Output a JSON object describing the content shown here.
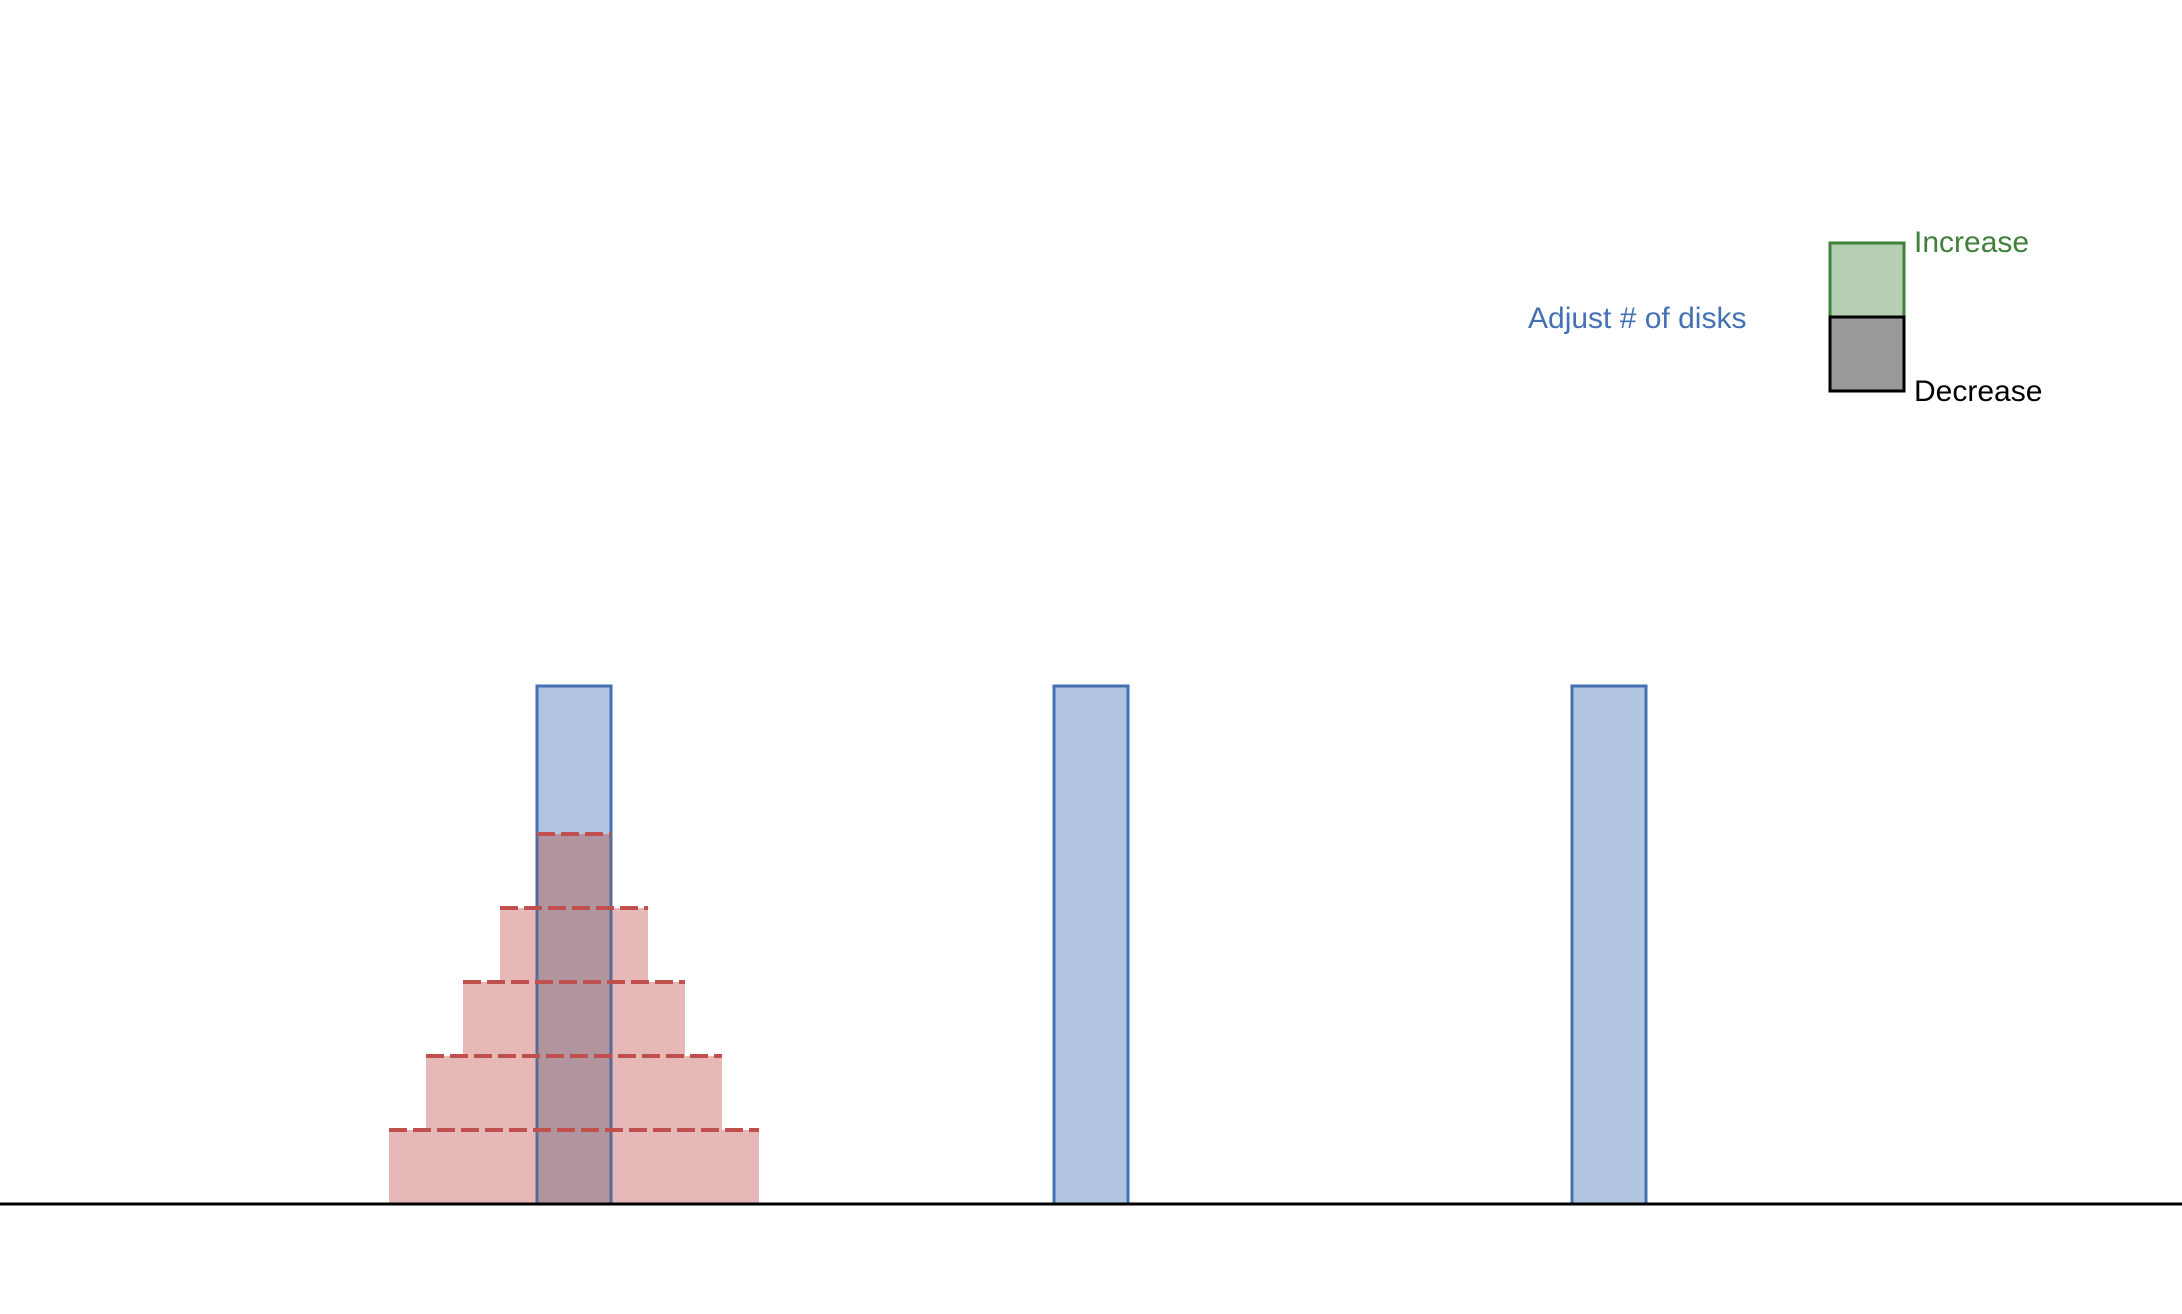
{
  "controls": {
    "adjust_label": "Adjust # of disks",
    "increase_label": "Increase",
    "decrease_label": "Decrease"
  },
  "game": {
    "peg_count": 3,
    "disk_count": 5,
    "disks_on_peg": [
      5,
      0,
      0
    ]
  },
  "colors": {
    "peg_fill": "#b2c5e0",
    "peg_stroke": "#4471b4",
    "disk_fill": "#e6b8b7",
    "disk_stroke": "#c0504d",
    "overlap_fill": "#b0949e",
    "increase_fill": "#b6ceb4",
    "increase_stroke": "#3f813b",
    "decrease_fill": "#999999",
    "decrease_stroke": "#000000",
    "adjust_text": "#4471b4",
    "increase_text": "#3f813b",
    "decrease_text": "#000000",
    "ground": "#000000"
  },
  "icons": {
    "increase": "plus-square-icon",
    "decrease": "minus-square-icon"
  }
}
